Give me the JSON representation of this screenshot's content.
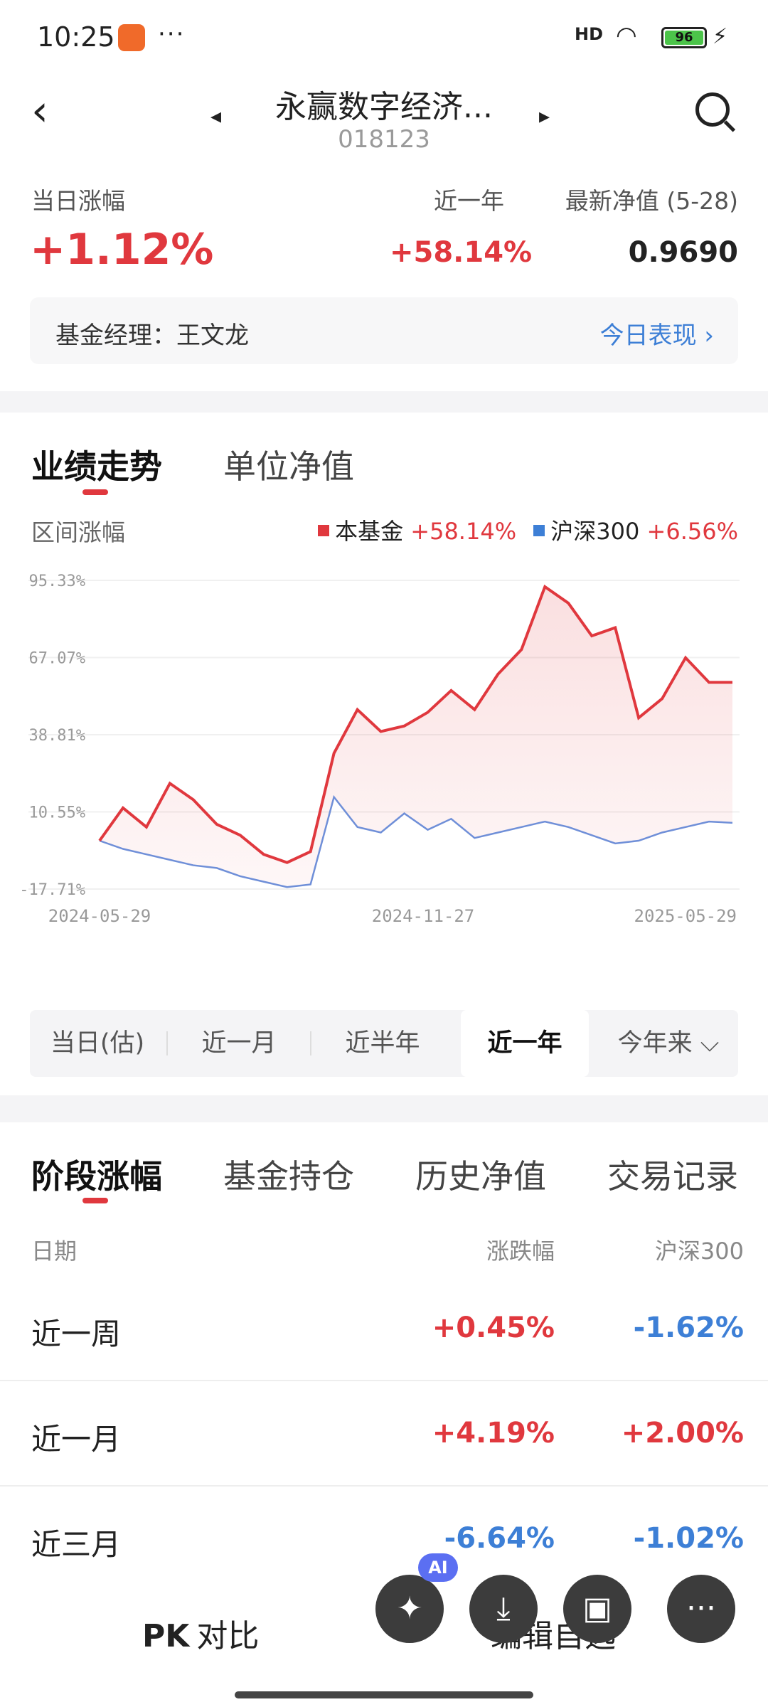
{
  "status": {
    "time": "10:25",
    "more": "···",
    "net": "HD",
    "battery": "96",
    "charge": "⚡"
  },
  "header": {
    "back": "‹",
    "title": "永赢数字经济...",
    "code": "018123",
    "search_icon": "search-icon"
  },
  "summary": {
    "daily_label": "当日涨幅",
    "daily_value": "+1.12%",
    "year_label": "近一年",
    "year_value": "+58.14%",
    "nav_label": "最新净值 (5-28)",
    "nav_value": "0.9690",
    "manager": "基金经理：王文龙",
    "today_link": "今日表现 ›"
  },
  "chart_tabs": [
    "业绩走势",
    "单位净值"
  ],
  "chart_header": {
    "range_label": "区间涨幅",
    "fund_name": "本基金",
    "fund_value": "+58.14%",
    "index_name": "沪深300",
    "index_value": "+6.56%"
  },
  "periods": [
    "当日(估)",
    "近一月",
    "近半年",
    "近一年",
    "今年来 ⌵"
  ],
  "bottom_tabs": [
    "阶段涨幅",
    "基金持仓",
    "历史净值",
    "交易记录"
  ],
  "table": {
    "headers": [
      "日期",
      "涨跌幅",
      "沪深300"
    ],
    "rows": [
      {
        "name": "近一周",
        "fund": "+0.45%",
        "index": "-1.62%"
      },
      {
        "name": "近一月",
        "fund": "+4.19%",
        "index": "+2.00%"
      },
      {
        "name": "近三月",
        "fund": "-6.64%",
        "index": "-1.02%"
      }
    ]
  },
  "bottom_bar": {
    "compare": "对比",
    "compare_icon": "PK",
    "edit": "编辑自选",
    "ai_badge": "AI"
  },
  "colors": {
    "fund": "#e0383e",
    "index": "#6f8fd8",
    "accent": "#e0383e"
  },
  "chart_data": {
    "type": "line",
    "yticks": [
      "95.33%",
      "67.07%",
      "38.81%",
      "10.55%",
      "-17.71%"
    ],
    "ylim": [
      -17.71,
      95.33
    ],
    "xticks": [
      "2024-05-29",
      "2024-11-27",
      "2025-05-29"
    ],
    "x": [
      "2024-05-29",
      "2024-06-12",
      "2024-06-26",
      "2024-07-10",
      "2024-07-24",
      "2024-08-07",
      "2024-08-21",
      "2024-09-04",
      "2024-09-18",
      "2024-09-26",
      "2024-10-08",
      "2024-10-22",
      "2024-11-05",
      "2024-11-19",
      "2024-12-03",
      "2024-12-17",
      "2024-12-31",
      "2025-01-14",
      "2025-01-28",
      "2025-02-11",
      "2025-02-25",
      "2025-03-11",
      "2025-03-25",
      "2025-04-08",
      "2025-04-22",
      "2025-05-06",
      "2025-05-20",
      "2025-05-29"
    ],
    "series": [
      {
        "name": "本基金",
        "values": [
          0,
          12,
          5,
          21,
          15,
          6,
          2,
          -5,
          -8,
          -4,
          32,
          48,
          40,
          42,
          47,
          55,
          48,
          61,
          70,
          93,
          87,
          75,
          78,
          45,
          52,
          67,
          58,
          58
        ]
      },
      {
        "name": "沪深300",
        "values": [
          0,
          -3,
          -5,
          -7,
          -9,
          -10,
          -13,
          -15,
          -17,
          -16,
          16,
          5,
          3,
          10,
          4,
          8,
          1,
          3,
          5,
          7,
          5,
          2,
          -1,
          0,
          3,
          5,
          7,
          6.56
        ]
      }
    ]
  }
}
